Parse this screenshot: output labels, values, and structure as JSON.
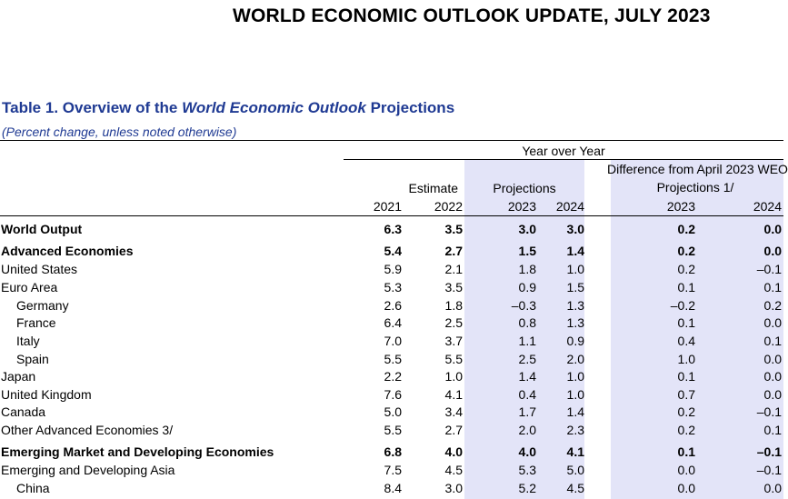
{
  "page_header": "WORLD ECONOMIC OUTLOOK UPDATE, JULY 2023",
  "table": {
    "title_prefix": "Table 1. Overview of the ",
    "title_italic": "World Economic Outlook",
    "title_suffix": " Projections",
    "subtitle": "(Percent change, unless noted otherwise)",
    "header": {
      "year_over_year": "Year over Year",
      "difference_line1": "Difference from April 2023 WEO",
      "difference_line2": "Projections 1/",
      "estimate": "Estimate",
      "projections": "Projections",
      "columns": [
        "2021",
        "2022",
        "2023",
        "2024",
        "2023",
        "2024"
      ]
    },
    "rows": [
      {
        "label": "World Output",
        "bold": true,
        "indent": 0,
        "values": [
          "6.3",
          "3.5",
          "3.0",
          "3.0",
          "0.2",
          "0.0"
        ]
      },
      {
        "label": "Advanced Economies",
        "bold": true,
        "indent": 0,
        "values": [
          "5.4",
          "2.7",
          "1.5",
          "1.4",
          "0.2",
          "0.0"
        ]
      },
      {
        "label": "United States",
        "bold": false,
        "indent": 0,
        "values": [
          "5.9",
          "2.1",
          "1.8",
          "1.0",
          "0.2",
          "–0.1"
        ]
      },
      {
        "label": "Euro Area",
        "bold": false,
        "indent": 0,
        "values": [
          "5.3",
          "3.5",
          "0.9",
          "1.5",
          "0.1",
          "0.1"
        ]
      },
      {
        "label": "Germany",
        "bold": false,
        "indent": 1,
        "values": [
          "2.6",
          "1.8",
          "–0.3",
          "1.3",
          "–0.2",
          "0.2"
        ]
      },
      {
        "label": "France",
        "bold": false,
        "indent": 1,
        "values": [
          "6.4",
          "2.5",
          "0.8",
          "1.3",
          "0.1",
          "0.0"
        ]
      },
      {
        "label": "Italy",
        "bold": false,
        "indent": 1,
        "values": [
          "7.0",
          "3.7",
          "1.1",
          "0.9",
          "0.4",
          "0.1"
        ]
      },
      {
        "label": "Spain",
        "bold": false,
        "indent": 1,
        "values": [
          "5.5",
          "5.5",
          "2.5",
          "2.0",
          "1.0",
          "0.0"
        ]
      },
      {
        "label": "Japan",
        "bold": false,
        "indent": 0,
        "values": [
          "2.2",
          "1.0",
          "1.4",
          "1.0",
          "0.1",
          "0.0"
        ]
      },
      {
        "label": "United Kingdom",
        "bold": false,
        "indent": 0,
        "values": [
          "7.6",
          "4.1",
          "0.4",
          "1.0",
          "0.7",
          "0.0"
        ]
      },
      {
        "label": "Canada",
        "bold": false,
        "indent": 0,
        "values": [
          "5.0",
          "3.4",
          "1.7",
          "1.4",
          "0.2",
          "–0.1"
        ]
      },
      {
        "label": "Other Advanced Economies 3/",
        "bold": false,
        "indent": 0,
        "values": [
          "5.5",
          "2.7",
          "2.0",
          "2.3",
          "0.2",
          "0.1"
        ]
      },
      {
        "label": "Emerging Market and Developing Economies",
        "bold": true,
        "indent": 0,
        "values": [
          "6.8",
          "4.0",
          "4.0",
          "4.1",
          "0.1",
          "–0.1"
        ]
      },
      {
        "label": "Emerging and Developing Asia",
        "bold": false,
        "indent": 0,
        "values": [
          "7.5",
          "4.5",
          "5.3",
          "5.0",
          "0.0",
          "–0.1"
        ]
      },
      {
        "label": "China",
        "bold": false,
        "indent": 1,
        "values": [
          "8.4",
          "3.0",
          "5.2",
          "4.5",
          "0.0",
          "0.0"
        ]
      }
    ]
  },
  "colors": {
    "title_blue": "#1f3a93",
    "shade": "#e3e4f8"
  }
}
